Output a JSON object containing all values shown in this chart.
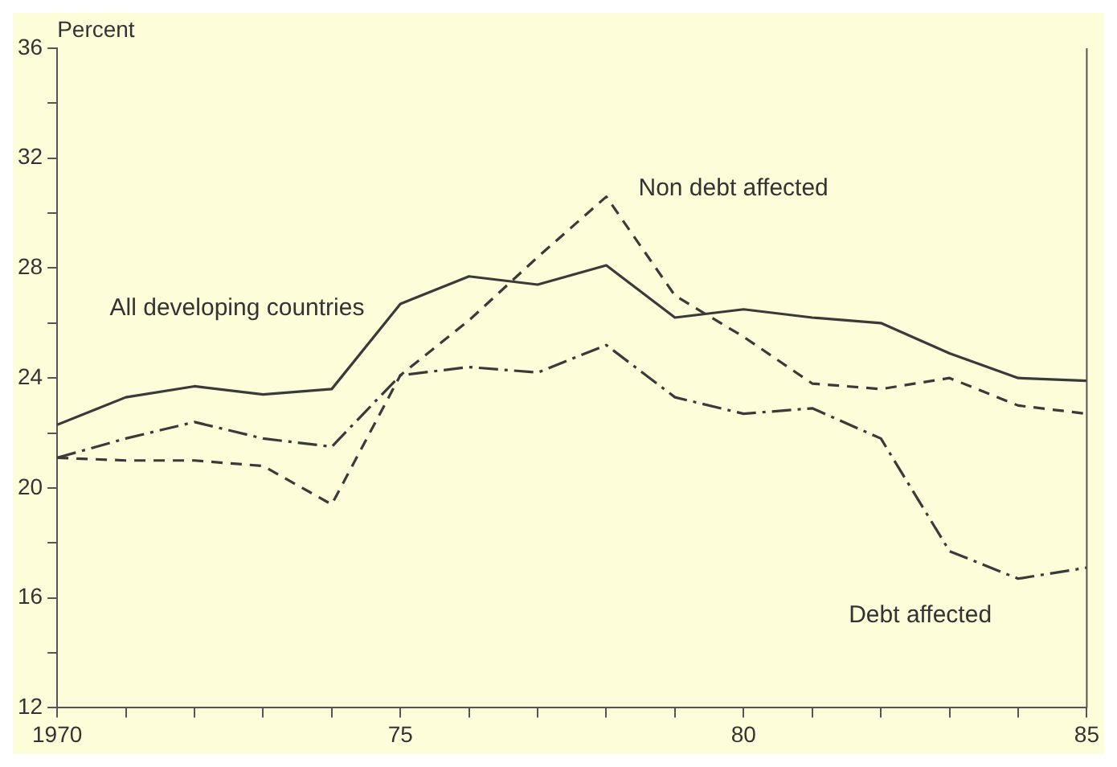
{
  "chart_data": {
    "type": "line",
    "ylabel": "Percent",
    "x": [
      1970,
      1971,
      1972,
      1973,
      1974,
      1975,
      1976,
      1977,
      1978,
      1979,
      1980,
      1981,
      1982,
      1983,
      1984,
      1985
    ],
    "series": [
      {
        "name": "All developing countries",
        "color": "#3a3a3a",
        "line_style": "solid",
        "values": [
          22.3,
          23.3,
          23.7,
          23.4,
          23.6,
          26.7,
          27.7,
          27.4,
          28.1,
          26.2,
          26.5,
          26.2,
          26.0,
          24.9,
          24.0,
          23.9
        ]
      },
      {
        "name": "Non debt affected",
        "color": "#3a3a3a",
        "line_style": "dashed",
        "values": [
          21.1,
          21.0,
          21.0,
          20.8,
          19.4,
          24.1,
          26.1,
          28.4,
          30.6,
          27.0,
          25.5,
          23.8,
          23.6,
          24.0,
          23.0,
          22.7
        ]
      },
      {
        "name": "Debt affected",
        "color": "#3a3a3a",
        "line_style": "dashdot",
        "values": [
          21.1,
          21.8,
          22.4,
          21.8,
          21.5,
          24.1,
          24.4,
          24.2,
          25.2,
          23.3,
          22.7,
          22.9,
          21.8,
          17.7,
          16.7,
          17.1
        ]
      }
    ],
    "xlim": [
      1970,
      1985
    ],
    "xticks": [
      {
        "value": 1970,
        "label": "1970"
      },
      {
        "value": 1971,
        "label": null
      },
      {
        "value": 1972,
        "label": null
      },
      {
        "value": 1973,
        "label": null
      },
      {
        "value": 1974,
        "label": null
      },
      {
        "value": 1975,
        "label": "75"
      },
      {
        "value": 1976,
        "label": null
      },
      {
        "value": 1977,
        "label": null
      },
      {
        "value": 1978,
        "label": null
      },
      {
        "value": 1979,
        "label": null
      },
      {
        "value": 1980,
        "label": "80"
      },
      {
        "value": 1981,
        "label": null
      },
      {
        "value": 1982,
        "label": null
      },
      {
        "value": 1983,
        "label": null
      },
      {
        "value": 1984,
        "label": null
      },
      {
        "value": 1985,
        "label": "85"
      }
    ],
    "ylim": [
      12,
      36
    ],
    "yticks": [
      12,
      {
        "value": 14,
        "label": null
      },
      16,
      {
        "value": 18,
        "label": null
      },
      20,
      {
        "value": 22,
        "label": null
      },
      24,
      {
        "value": 26,
        "label": null
      },
      28,
      {
        "value": 30,
        "label": null
      },
      32,
      {
        "value": 34,
        "label": null
      },
      36
    ],
    "grid": false,
    "legend": false,
    "marker": "none"
  }
}
